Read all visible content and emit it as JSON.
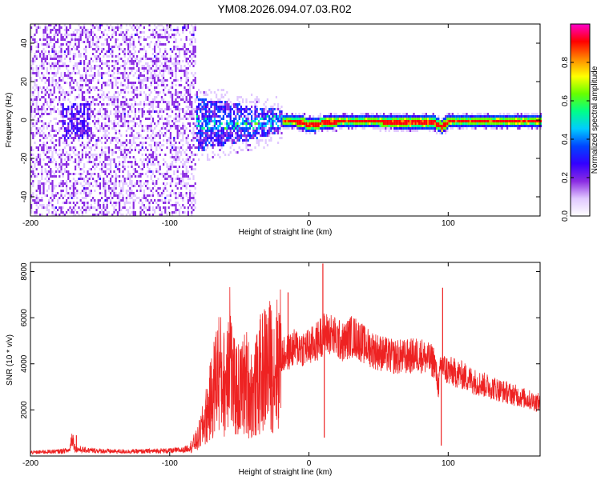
{
  "title": "YM08.2026.094.07.03.R02",
  "chart_data": [
    {
      "type": "heatmap",
      "xlabel": "Height of straight line (km)",
      "ylabel": "Frequency (Hz)",
      "xlim": [
        -200,
        166
      ],
      "ylim": [
        -50,
        50
      ],
      "xticks": [
        -200,
        -100,
        0,
        100
      ],
      "yticks": [
        -40,
        -20,
        0,
        20,
        40
      ],
      "colorbar": {
        "label": "Normalized spectral amplitude",
        "range": [
          0,
          1
        ],
        "ticks": [
          "0.0",
          "0.2",
          "0.4",
          "0.6",
          "0.8"
        ],
        "colormap": [
          "#ffffff",
          "#e0c8ff",
          "#8a2be2",
          "#3300ff",
          "#0044ff",
          "#00ccff",
          "#00ff88",
          "#66ff00",
          "#ffff00",
          "#ff8800",
          "#ff0000",
          "#ff00cc"
        ]
      },
      "regions": [
        {
          "x_range": [
            -200,
            -82
          ],
          "description_level": 0.15
        },
        {
          "x_range": [
            -82,
            -20
          ],
          "description_level": 0.35
        },
        {
          "x_range": [
            -20,
            166
          ],
          "description_level": 0.7
        }
      ],
      "ridge_frequency": [
        {
          "x": -80,
          "y": -2
        },
        {
          "x": -60,
          "y": -1
        },
        {
          "x": -40,
          "y": -1
        },
        {
          "x": -25,
          "y": 0
        },
        {
          "x": -10,
          "y": 0
        },
        {
          "x": 0,
          "y": -2
        },
        {
          "x": 20,
          "y": 0
        },
        {
          "x": 50,
          "y": 0
        },
        {
          "x": 90,
          "y": -1
        },
        {
          "x": 95,
          "y": -3
        },
        {
          "x": 100,
          "y": 0
        },
        {
          "x": 166,
          "y": 0
        }
      ]
    },
    {
      "type": "line",
      "xlabel": "Height of straight line (km)",
      "ylabel": "SNR (10 * v/v)",
      "xlim": [
        -200,
        166
      ],
      "ylim": [
        0,
        8400
      ],
      "xticks": [
        -200,
        -100,
        0,
        100
      ],
      "yticks": [
        2000,
        4000,
        6000,
        8000
      ],
      "color": "#ee2222",
      "series": [
        {
          "x": [
            -200,
            -190,
            -180,
            -172,
            -170,
            -168,
            -160,
            -150,
            -140,
            -130,
            -120,
            -110,
            -100,
            -90,
            -85,
            -80,
            -75,
            -70,
            -65,
            -60,
            -57,
            -55,
            -50,
            -45,
            -40,
            -35,
            -30,
            -25,
            -20,
            -15,
            -10,
            -5,
            0,
            5,
            10,
            15,
            20,
            25,
            30,
            35,
            40,
            50,
            60,
            70,
            80,
            85,
            90,
            93,
            95,
            97,
            100,
            110,
            120,
            130,
            140,
            150,
            160,
            166
          ],
          "y": [
            150,
            180,
            200,
            250,
            900,
            300,
            250,
            220,
            200,
            200,
            200,
            220,
            230,
            260,
            400,
            700,
            1500,
            2500,
            3800,
            3000,
            5400,
            3000,
            2800,
            3200,
            2600,
            3500,
            4000,
            3800,
            4300,
            4500,
            4700,
            4700,
            4700,
            4900,
            5300,
            5300,
            5100,
            4900,
            5200,
            5100,
            4800,
            4500,
            4300,
            4300,
            4400,
            4200,
            4100,
            3000,
            4000,
            3800,
            3700,
            3500,
            3200,
            3000,
            2800,
            2600,
            2400,
            2300
          ],
          "spikes": [
            {
              "x": -167,
              "y": 900
            },
            {
              "x": -56,
              "y": 5600
            },
            {
              "x": -15,
              "y": 7100
            },
            {
              "x": 10,
              "y": 8350
            },
            {
              "x": 11,
              "y": 800
            },
            {
              "x": 96,
              "y": 7300
            },
            {
              "x": 95,
              "y": 450
            }
          ]
        }
      ]
    }
  ]
}
